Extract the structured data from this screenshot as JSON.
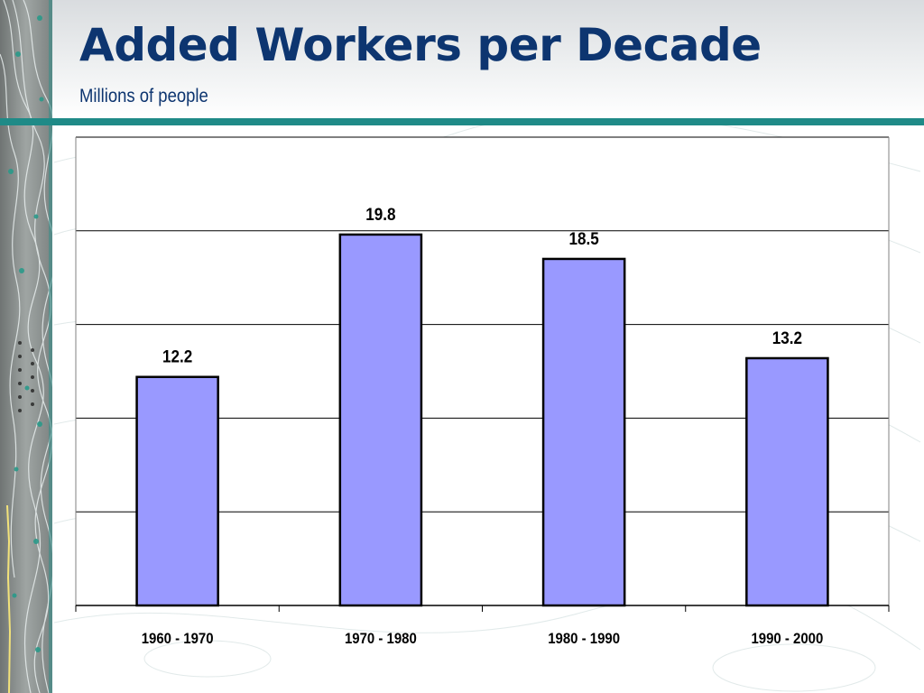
{
  "slide": {
    "title": "Added Workers per Decade",
    "subtitle": "Millions of people"
  },
  "colors": {
    "title": "#0d3570",
    "header_rule": "#1f8a87",
    "bar_fill": "#9999ff",
    "bar_stroke": "#000000",
    "gridline": "#000000"
  },
  "chart_data": {
    "type": "bar",
    "title": "",
    "xlabel": "",
    "ylabel": "",
    "categories": [
      "1960 - 1970",
      "1970 - 1980",
      "1980 - 1990",
      "1990 - 2000"
    ],
    "values": [
      12.2,
      19.8,
      18.5,
      13.2
    ],
    "data_labels": [
      "12.2",
      "19.8",
      "18.5",
      "13.2"
    ],
    "ylim": [
      0,
      25
    ],
    "y_gridlines": [
      5,
      10,
      15,
      20,
      25
    ],
    "grid": true,
    "legend": "none",
    "y_tick_labels_shown": false
  }
}
